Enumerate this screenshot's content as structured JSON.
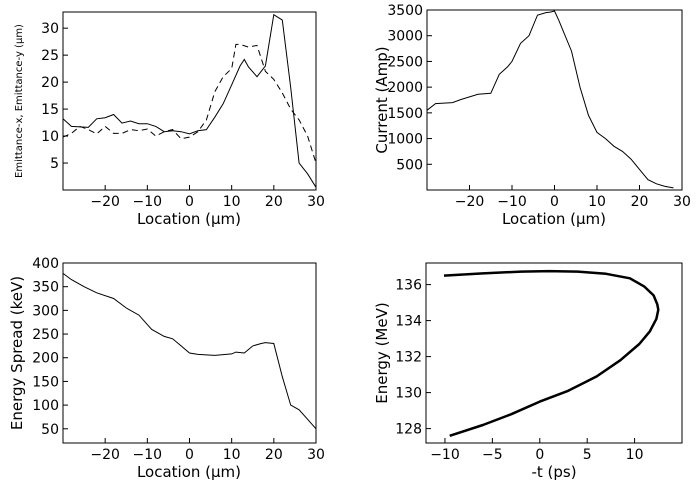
{
  "chart_data": [
    {
      "type": "line",
      "xlabel": "Location (μm)",
      "ylabel": "Emittance-x, Emittance-y (μm)",
      "xlim": [
        -30,
        30
      ],
      "ylim": [
        0,
        33
      ],
      "xticks": [
        -20,
        -10,
        0,
        10,
        20,
        30
      ],
      "yticks": [
        5,
        10,
        15,
        20,
        25,
        30
      ],
      "grid": false,
      "series": [
        {
          "style": "solid",
          "x": [
            -30,
            -28,
            -24,
            -22,
            -20,
            -18,
            -16,
            -14,
            -12,
            -10,
            -8,
            -6,
            -4,
            -2,
            0,
            2,
            4,
            6,
            8,
            10,
            12,
            13,
            14,
            16,
            18,
            20,
            22,
            24,
            26,
            28,
            30
          ],
          "y": [
            13.2,
            11.8,
            11.6,
            13.2,
            13.4,
            14.0,
            12.4,
            12.8,
            12.3,
            12.3,
            11.8,
            10.8,
            11.0,
            10.8,
            10.4,
            11.0,
            11.2,
            13.5,
            16.0,
            19.5,
            23.0,
            24.2,
            22.8,
            21.0,
            23.0,
            32.5,
            31.5,
            19.0,
            5.0,
            3.0,
            0.5
          ]
        },
        {
          "style": "dashed",
          "x": [
            -30,
            -28,
            -26,
            -24,
            -22,
            -20,
            -18,
            -16,
            -14,
            -12,
            -10,
            -8,
            -6,
            -4,
            -2,
            0,
            2,
            4,
            6,
            8,
            10,
            11,
            12,
            14,
            16,
            18,
            20,
            22,
            24,
            26,
            28,
            30
          ],
          "y": [
            9.8,
            10.5,
            11.8,
            11.2,
            10.4,
            11.8,
            10.5,
            10.5,
            11.2,
            11.0,
            11.3,
            10.0,
            10.8,
            11.2,
            9.5,
            9.8,
            10.8,
            13.0,
            18.2,
            21.0,
            22.5,
            27.0,
            27.0,
            26.5,
            26.8,
            22.0,
            20.5,
            18.0,
            15.0,
            13.0,
            10.0,
            5.0
          ]
        }
      ]
    },
    {
      "type": "line",
      "xlabel": "Location (μm)",
      "ylabel": "Current (Amp)",
      "xlim": [
        -30,
        30
      ],
      "ylim": [
        0,
        3500
      ],
      "xticks": [
        -20,
        -10,
        0,
        10,
        20,
        30
      ],
      "yticks": [
        500,
        1000,
        1500,
        2000,
        2500,
        3000,
        3500
      ],
      "grid": false,
      "series": [
        {
          "style": "solid",
          "x": [
            -30,
            -28,
            -24,
            -22,
            -18,
            -15,
            -13,
            -11,
            -10,
            -8,
            -6,
            -4,
            -2,
            -1,
            0,
            1,
            2,
            4,
            6,
            8,
            10,
            12,
            14,
            16,
            18,
            20,
            22,
            24,
            26,
            28
          ],
          "y": [
            1550,
            1680,
            1700,
            1760,
            1860,
            1880,
            2250,
            2400,
            2500,
            2850,
            3000,
            3400,
            3450,
            3460,
            3480,
            3300,
            3100,
            2700,
            2000,
            1450,
            1120,
            1000,
            850,
            750,
            600,
            400,
            200,
            120,
            70,
            40
          ]
        }
      ]
    },
    {
      "type": "line",
      "xlabel": "Location (μm)",
      "ylabel": "Energy Spread (keV)",
      "xlim": [
        -30,
        30
      ],
      "ylim": [
        20,
        400
      ],
      "xticks": [
        -20,
        -10,
        0,
        10,
        20,
        30
      ],
      "yticks": [
        50,
        100,
        150,
        200,
        250,
        300,
        350,
        400
      ],
      "grid": false,
      "series": [
        {
          "style": "solid",
          "x": [
            -30,
            -28,
            -25,
            -22,
            -18,
            -15,
            -12,
            -9,
            -6,
            -4,
            -2,
            0,
            2,
            6,
            10,
            11,
            13,
            15,
            17,
            18,
            20,
            22,
            24,
            26,
            28,
            30
          ],
          "y": [
            378,
            365,
            350,
            337,
            325,
            305,
            290,
            260,
            245,
            240,
            225,
            210,
            207,
            205,
            208,
            212,
            210,
            225,
            230,
            232,
            230,
            160,
            100,
            90,
            70,
            50
          ]
        }
      ]
    },
    {
      "type": "scatter",
      "xlabel": "-t (ps)",
      "ylabel": "Energy (MeV)",
      "xlim": [
        -12,
        15
      ],
      "ylim": [
        127.2,
        137.2
      ],
      "xticks": [
        -10,
        -5,
        0,
        5,
        10
      ],
      "yticks": [
        128,
        130,
        132,
        134,
        136
      ],
      "grid": false,
      "series": [
        {
          "style": "thick-curve",
          "x": [
            -10.1,
            -6,
            -2,
            1,
            4,
            7,
            9.5,
            11,
            12,
            12.4,
            12.5,
            12.3,
            11.6,
            10.5,
            8.5,
            6,
            3,
            0,
            -3,
            -6,
            -9.5
          ],
          "y": [
            136.5,
            136.62,
            136.72,
            136.75,
            136.72,
            136.6,
            136.35,
            135.9,
            135.4,
            134.9,
            134.6,
            134.1,
            133.4,
            132.7,
            131.8,
            130.9,
            130.1,
            129.5,
            128.8,
            128.2,
            127.6
          ]
        }
      ]
    }
  ]
}
